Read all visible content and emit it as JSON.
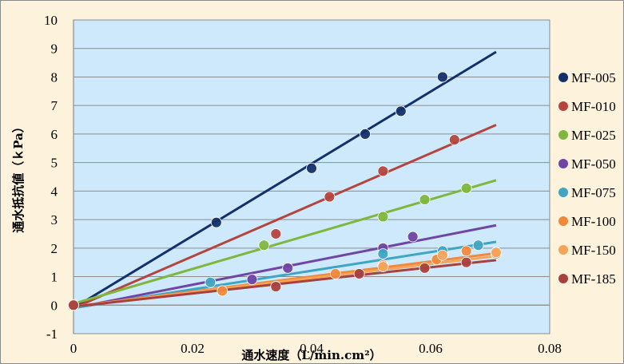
{
  "chart_data": {
    "type": "scatter",
    "xlabel": "通水速度（L/min.cm²）",
    "ylabel": "通水抵抗値（ｋPa）",
    "xlim": [
      0,
      0.08
    ],
    "ylim": [
      -1,
      10
    ],
    "x_ticks": [
      "0",
      "0.02",
      "0.04",
      "0.06",
      "0.08"
    ],
    "y_ticks": [
      "-1",
      "0",
      "1",
      "2",
      "3",
      "4",
      "5",
      "6",
      "7",
      "8",
      "9",
      "10"
    ],
    "grid": "horizontal",
    "legend_position": "right",
    "plot_background": "#cde9fb",
    "figure_background": "#fdf3dc",
    "series": [
      {
        "name": "MF-005",
        "color": "#14306a",
        "points": [
          [
            0,
            0
          ],
          [
            0.024,
            2.9
          ],
          [
            0.04,
            4.8
          ],
          [
            0.049,
            6.0
          ],
          [
            0.055,
            6.8
          ],
          [
            0.062,
            8.0
          ]
        ],
        "trendline": [
          [
            0,
            -0.1
          ],
          [
            0.071,
            8.88
          ]
        ]
      },
      {
        "name": "MF-010",
        "color": "#b5443f",
        "points": [
          [
            0,
            0
          ],
          [
            0.034,
            2.5
          ],
          [
            0.043,
            3.8
          ],
          [
            0.052,
            4.7
          ],
          [
            0.064,
            5.8
          ]
        ],
        "trendline": [
          [
            0,
            -0.1
          ],
          [
            0.071,
            6.32
          ]
        ]
      },
      {
        "name": "MF-025",
        "color": "#7fb73e",
        "points": [
          [
            0,
            0
          ],
          [
            0.032,
            2.1
          ],
          [
            0.052,
            3.1
          ],
          [
            0.059,
            3.7
          ],
          [
            0.066,
            4.1
          ]
        ],
        "trendline": [
          [
            0,
            0.05
          ],
          [
            0.071,
            4.38
          ]
        ]
      },
      {
        "name": "MF-050",
        "color": "#7045a3",
        "points": [
          [
            0,
            0
          ],
          [
            0.03,
            0.9
          ],
          [
            0.036,
            1.3
          ],
          [
            0.052,
            2.0
          ],
          [
            0.057,
            2.4
          ]
        ],
        "trendline": [
          [
            0,
            -0.1
          ],
          [
            0.071,
            2.8
          ]
        ]
      },
      {
        "name": "MF-075",
        "color": "#3fa5c3",
        "points": [
          [
            0,
            0
          ],
          [
            0.023,
            0.8
          ],
          [
            0.052,
            1.8
          ],
          [
            0.062,
            1.9
          ],
          [
            0.068,
            2.1
          ]
        ],
        "trendline": [
          [
            0,
            -0.1
          ],
          [
            0.071,
            2.22
          ]
        ]
      },
      {
        "name": "MF-100",
        "color": "#f0893a",
        "points": [
          [
            0,
            0
          ],
          [
            0.025,
            0.5
          ],
          [
            0.044,
            1.1
          ],
          [
            0.052,
            1.4
          ],
          [
            0.061,
            1.6
          ],
          [
            0.066,
            1.9
          ],
          [
            0.071,
            1.8
          ]
        ],
        "trendline": [
          [
            0,
            -0.05
          ],
          [
            0.071,
            1.82
          ]
        ]
      },
      {
        "name": "MF-150",
        "color": "#f7a45a",
        "points": [
          [
            0,
            0
          ],
          [
            0.052,
            1.35
          ],
          [
            0.062,
            1.75
          ],
          [
            0.071,
            1.85
          ]
        ],
        "trendline": [
          [
            0,
            -0.05
          ],
          [
            0.071,
            1.72
          ]
        ]
      },
      {
        "name": "MF-185",
        "color": "#a8403e",
        "points": [
          [
            0,
            0
          ],
          [
            0.034,
            0.65
          ],
          [
            0.048,
            1.1
          ],
          [
            0.059,
            1.3
          ],
          [
            0.066,
            1.5
          ]
        ],
        "trendline": [
          [
            0,
            -0.05
          ],
          [
            0.071,
            1.58
          ]
        ]
      }
    ]
  }
}
